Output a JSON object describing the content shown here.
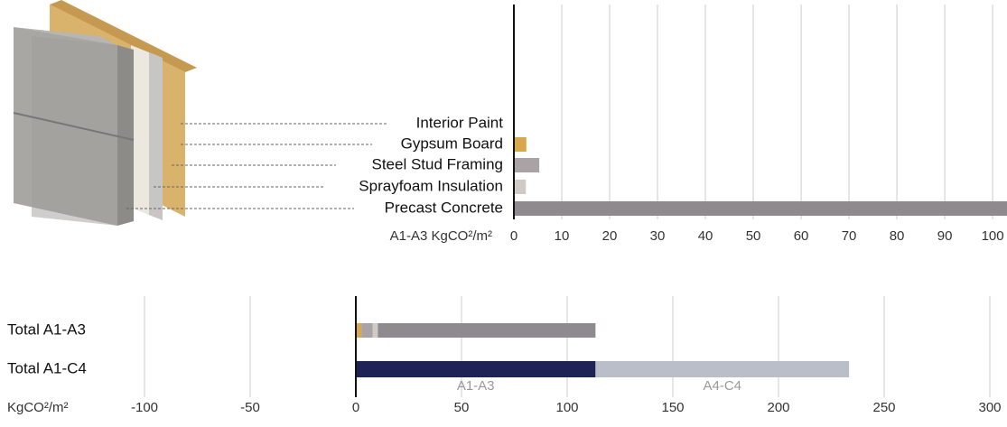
{
  "chart_data": [
    {
      "type": "hbar",
      "xlabel": "A1-A3 KgCO²/m²",
      "categories": [
        "Interior Paint",
        "Gypsum Board",
        "Steel Stud Framing",
        "Sprayfoam Insulation",
        "Precast Concrete"
      ],
      "values": [
        0,
        2.6,
        5.3,
        2.5,
        103
      ],
      "colors": [
        "#e6e0d8",
        "#d8a84e",
        "#a9a3a5",
        "#cfcac6",
        "#8e8a8d"
      ],
      "xlim": [
        0,
        103
      ],
      "xticks": [
        0,
        10,
        20,
        30,
        40,
        50,
        60,
        70,
        80,
        90,
        100
      ],
      "grid": true
    },
    {
      "type": "stacked-hbar",
      "xlabel": "KgCO²/m²",
      "categories": [
        "Total A1-A3",
        "Total A1-C4"
      ],
      "series": [
        {
          "name": "A1-A3",
          "color": "#1f2257",
          "values": [
            null,
            113.4
          ]
        },
        {
          "name": "A4-C4",
          "color": "#b9bec9",
          "values": [
            null,
            120
          ]
        }
      ],
      "xlim": [
        -100,
        300
      ],
      "xticks": [
        -100,
        -50,
        0,
        50,
        100,
        150,
        200,
        250,
        300
      ],
      "grid": true
    }
  ]
}
